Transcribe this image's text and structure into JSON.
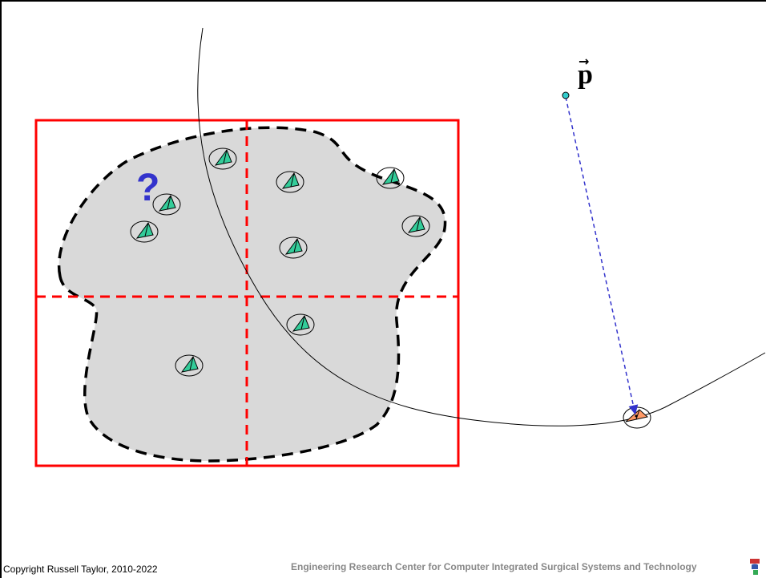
{
  "diagram": {
    "question_mark": "?",
    "vector_label": "p",
    "vector_arrow": "→"
  },
  "colors": {
    "region_fill": "#d9d9d9",
    "box": "#ff0000",
    "triangle_green": "#33cc99",
    "triangle_orange": "#ff9966",
    "point": "#33cccc",
    "vector": "#3333cc",
    "question": "#3333cc"
  },
  "footer": {
    "copyright": "Copyright Russell Taylor, 2010-2022",
    "organization": "Engineering Research Center for Computer Integrated Surgical Systems and Technology"
  },
  "icons": {
    "logo": "cisst-logo-icon"
  }
}
